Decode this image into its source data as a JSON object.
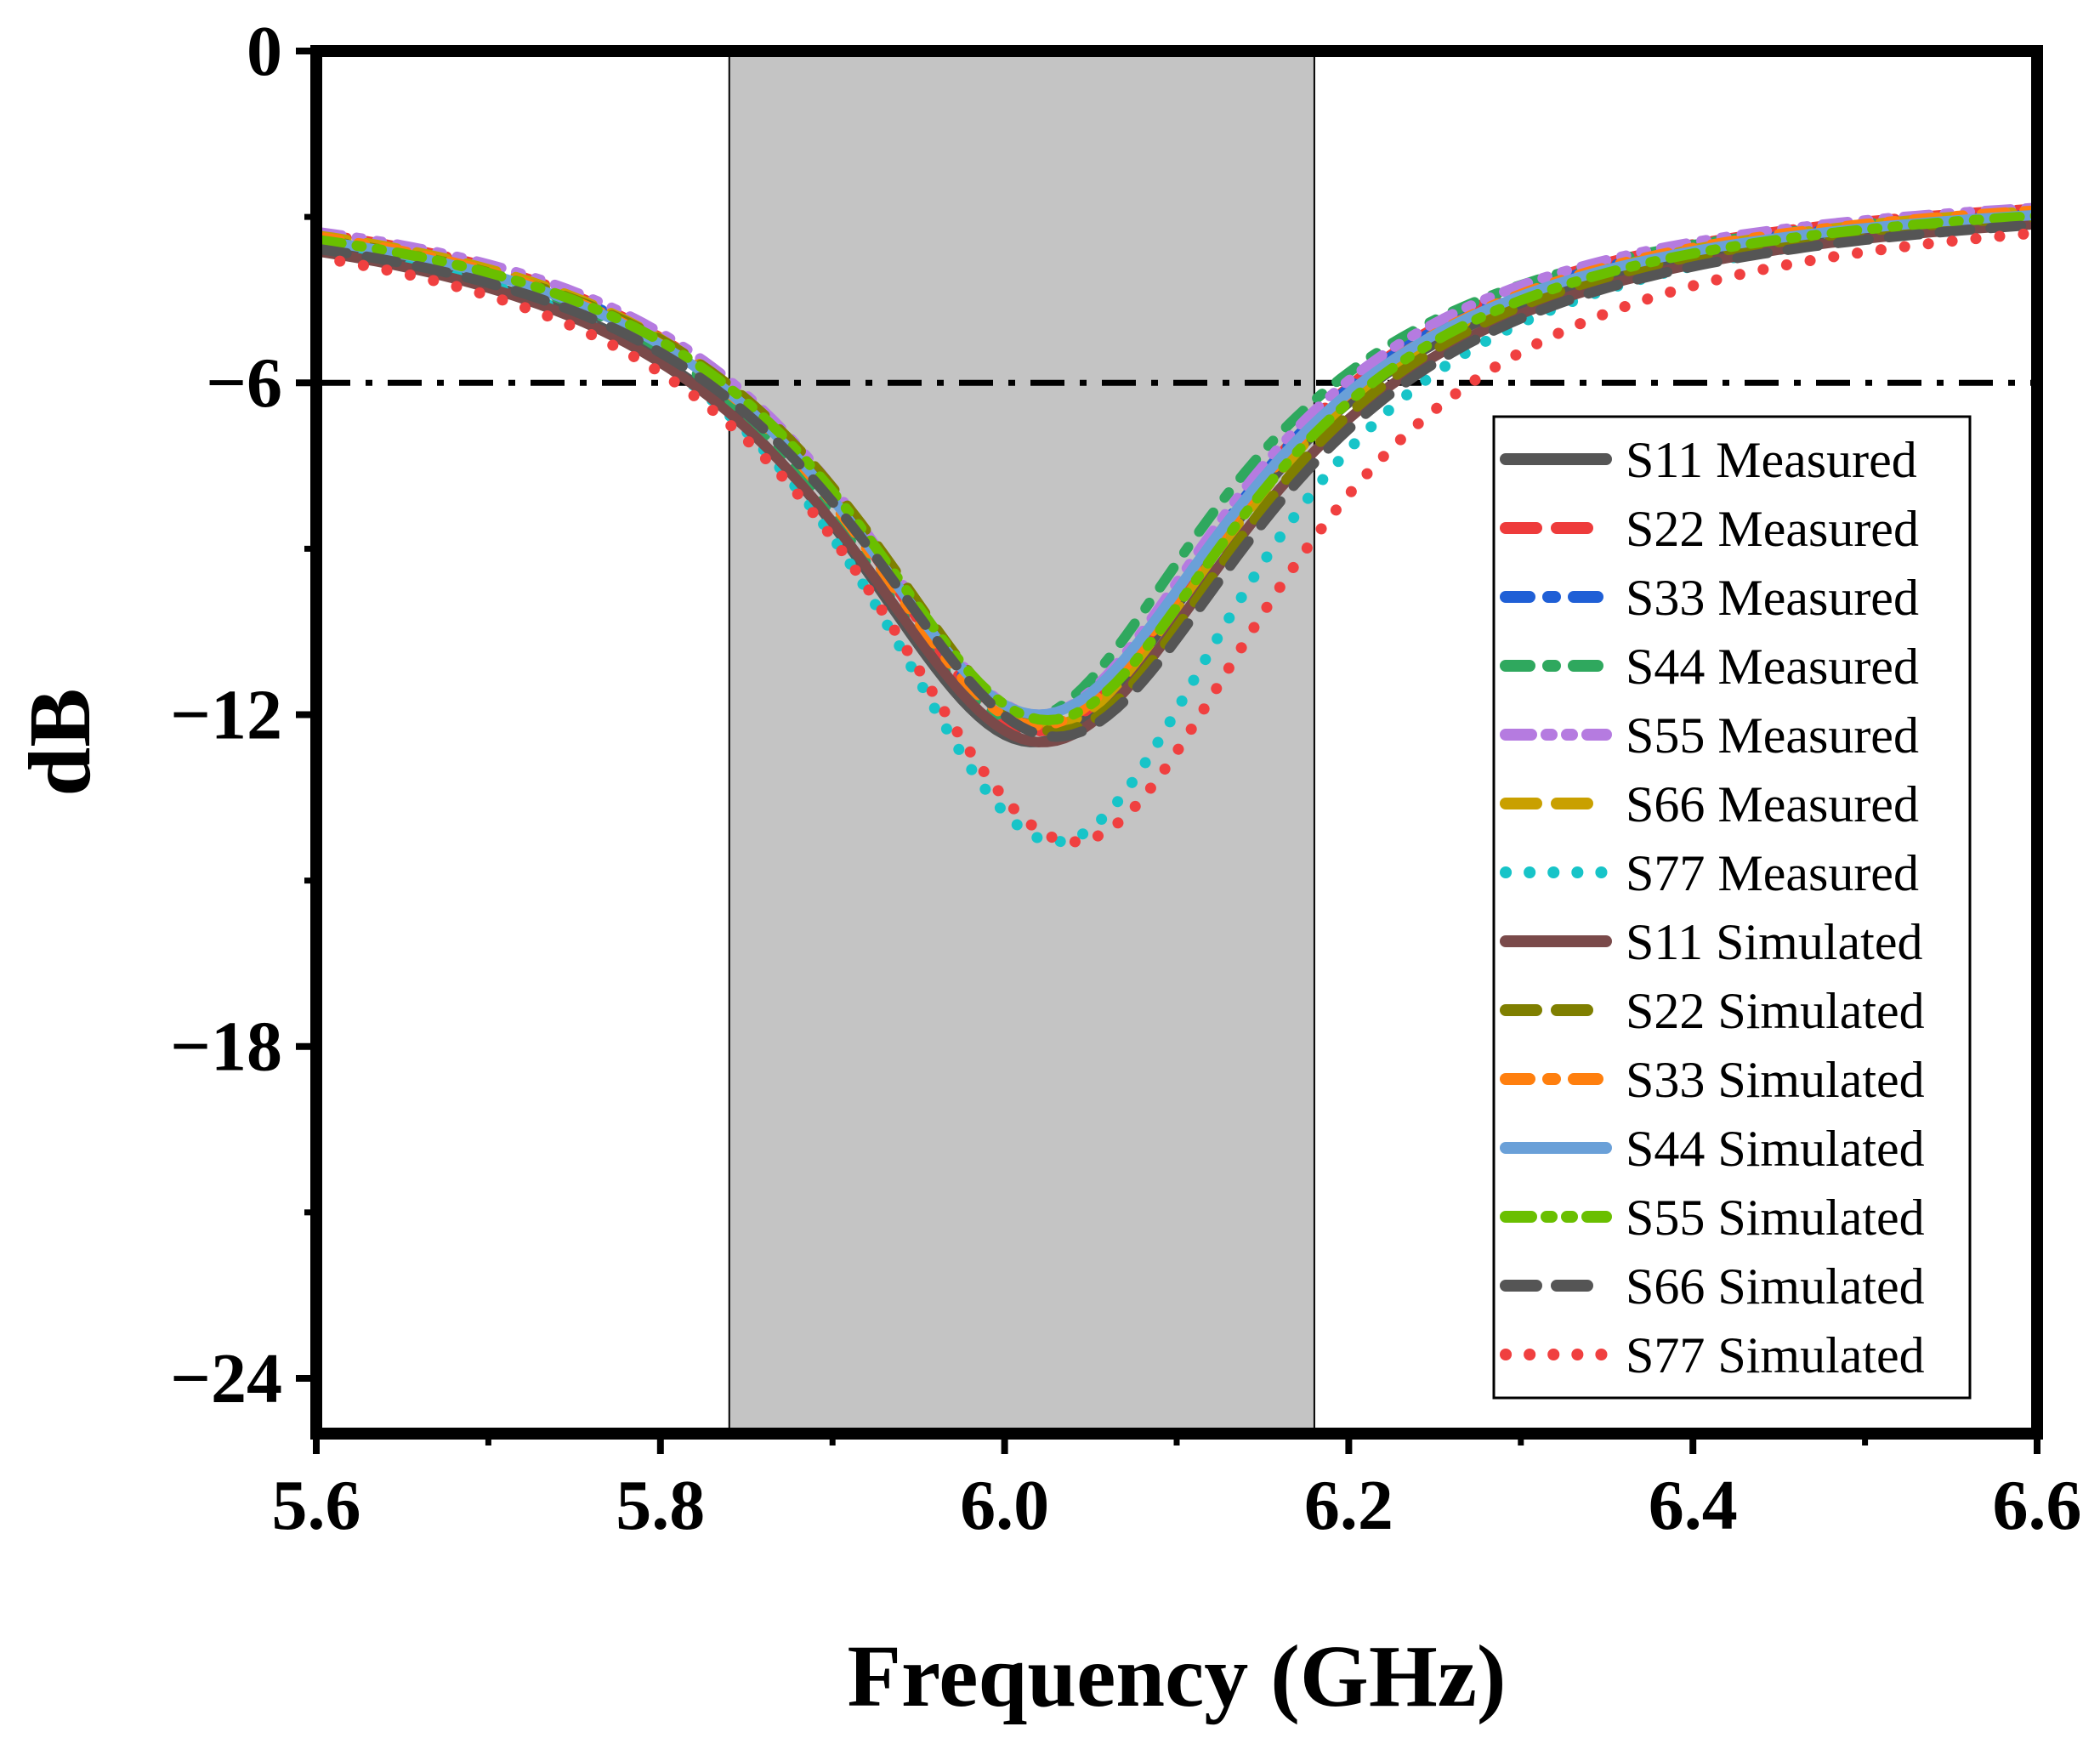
{
  "chart_data": {
    "type": "line",
    "xlabel": "Frequency (GHz)",
    "ylabel": "dB",
    "xlim": [
      5.6,
      6.6
    ],
    "ylim": [
      -25,
      0
    ],
    "x_ticks": [
      5.6,
      5.8,
      6.0,
      6.2,
      6.4,
      6.6
    ],
    "x_tick_labels": [
      "5.6",
      "5.8",
      "6.0",
      "6.2",
      "6.4",
      "6.6"
    ],
    "y_ticks": [
      0,
      -6,
      -12,
      -18,
      -24
    ],
    "y_tick_labels": [
      "0",
      "−6",
      "−12",
      "−18",
      "−24"
    ],
    "grid": false,
    "legend_position": "lower-right",
    "reference_line": {
      "y": -6,
      "style": "dash-dot",
      "color": "#000000"
    },
    "shaded_band": {
      "x_start": 5.84,
      "x_end": 6.18,
      "color": "#c4c4c4"
    },
    "series": [
      {
        "name": "S11 Measured",
        "color": "#555555",
        "style": "solid",
        "f0": 6.017,
        "min": -12.5,
        "bw": 0.145,
        "edge": -2.5
      },
      {
        "name": "S22 Measured",
        "color": "#ee3b3b",
        "style": "dash",
        "f0": 6.02,
        "min": -12.3,
        "bw": 0.14,
        "edge": -2.3
      },
      {
        "name": "S33 Measured",
        "color": "#1f5fd6",
        "style": "dashdot",
        "f0": 6.02,
        "min": -12.2,
        "bw": 0.14,
        "edge": -2.4
      },
      {
        "name": "S44 Measured",
        "color": "#2fa85e",
        "style": "dashdot",
        "f0": 6.01,
        "min": -12.1,
        "bw": 0.14,
        "edge": -2.4
      },
      {
        "name": "S55 Measured",
        "color": "#b57be0",
        "style": "dashdotdot",
        "f0": 6.02,
        "min": -12.0,
        "bw": 0.14,
        "edge": -2.3
      },
      {
        "name": "S66 Measured",
        "color": "#c9a000",
        "style": "dash",
        "f0": 6.025,
        "min": -12.2,
        "bw": 0.145,
        "edge": -2.3
      },
      {
        "name": "S77 Measured",
        "color": "#17c4c8",
        "style": "dot",
        "f0": 6.03,
        "min": -14.3,
        "bw": 0.14,
        "edge": -2.4
      },
      {
        "name": "S11 Simulated",
        "color": "#7a4a4a",
        "style": "solid",
        "f0": 6.022,
        "min": -12.5,
        "bw": 0.15,
        "edge": -2.5
      },
      {
        "name": "S22 Simulated",
        "color": "#7f7f00",
        "style": "dash",
        "f0": 6.03,
        "min": -12.3,
        "bw": 0.145,
        "edge": -2.4
      },
      {
        "name": "S33 Simulated",
        "color": "#ff7f0e",
        "style": "dashdot",
        "f0": 6.02,
        "min": -12.2,
        "bw": 0.145,
        "edge": -2.3
      },
      {
        "name": "S44 Simulated",
        "color": "#6aa0d8",
        "style": "solid",
        "f0": 6.02,
        "min": -12.0,
        "bw": 0.145,
        "edge": -2.4
      },
      {
        "name": "S55 Simulated",
        "color": "#6abf00",
        "style": "dashdotdot",
        "f0": 6.025,
        "min": -12.1,
        "bw": 0.145,
        "edge": -2.4
      },
      {
        "name": "S66 Simulated",
        "color": "#555555",
        "style": "dash",
        "f0": 6.03,
        "min": -12.4,
        "bw": 0.15,
        "edge": -2.5
      },
      {
        "name": "S77 Simulated",
        "color": "#f04040",
        "style": "dot",
        "f0": 6.04,
        "min": -14.3,
        "bw": 0.15,
        "edge": -2.5
      }
    ]
  }
}
